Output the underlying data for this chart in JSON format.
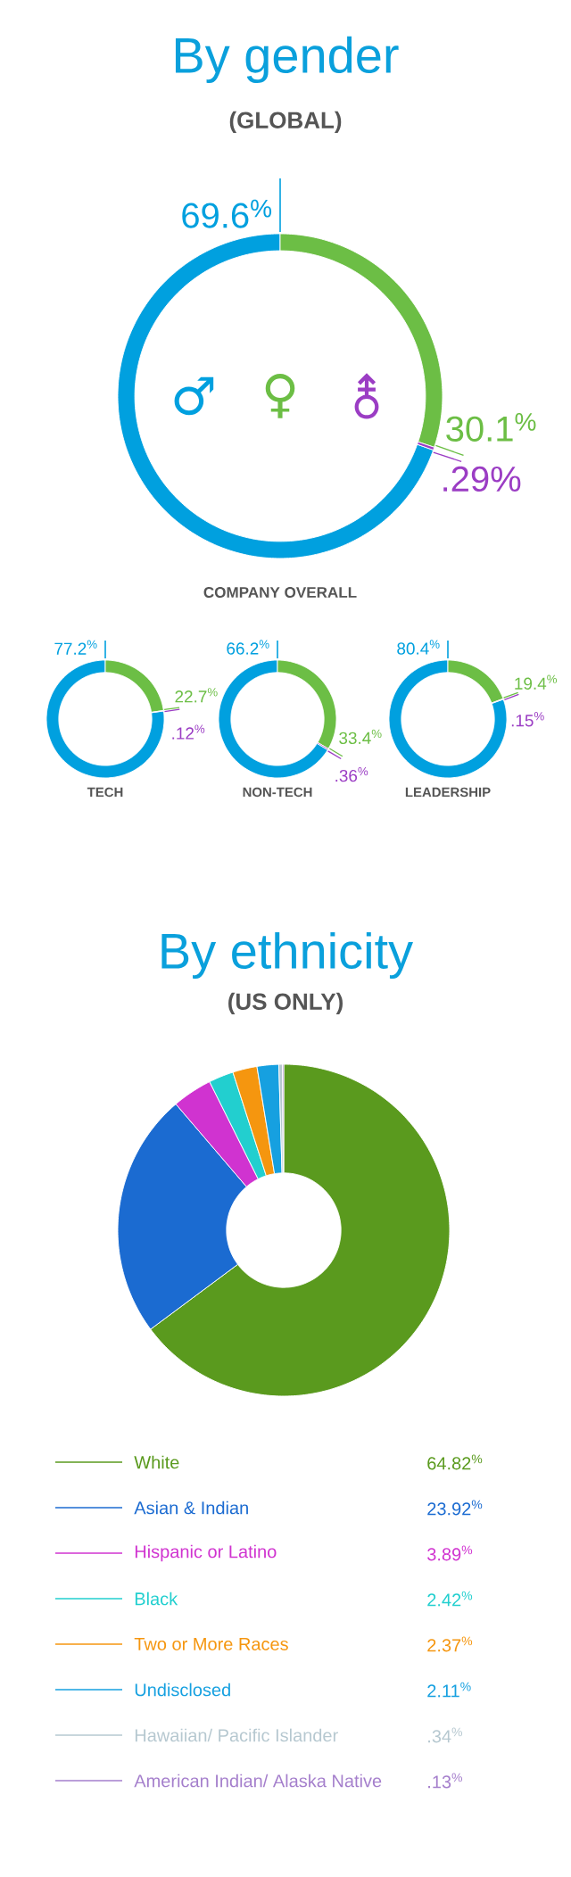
{
  "chart_data": [
    {
      "type": "donut",
      "title": "By gender",
      "subtitle": "(GLOBAL)",
      "xlabel": "COMPANY OVERALL",
      "categories": [
        null,
        null,
        null
      ],
      "values": [
        69.6,
        30.1,
        0.29
      ],
      "colors": [
        "#00a0df",
        "#6cbe45",
        "#9b3dc4"
      ],
      "value_labels": [
        "69.6$^{%}$",
        "30.1$^{%}$",
        ".29%"
      ],
      "annotations": [
        "♂",
        "♀",
        "⚨"
      ]
    },
    {
      "type": "donut",
      "xlabel": "TECH",
      "categories": [
        null,
        null,
        null
      ],
      "values": [
        77.2,
        22.7,
        0.12
      ],
      "colors": [
        "#00a0df",
        "#6cbe45",
        "#9b3dc4"
      ],
      "value_labels": [
        "77.2$^{%}$",
        "22.7$^{%}$",
        ".12$^{%}$"
      ]
    },
    {
      "type": "donut",
      "xlabel": "NON-TECH",
      "categories": [
        null,
        null,
        null
      ],
      "values": [
        66.2,
        33.4,
        0.36
      ],
      "colors": [
        "#00a0df",
        "#6cbe45",
        "#9b3dc4"
      ],
      "value_labels": [
        "66.2$^{%}$",
        "33.4$^{%}$",
        ".36$^{%}$"
      ]
    },
    {
      "type": "donut",
      "xlabel": "LEADERSHIP",
      "categories": [
        null,
        null,
        null
      ],
      "values": [
        80.4,
        19.4,
        0.15
      ],
      "colors": [
        "#00a0df",
        "#6cbe45",
        "#9b3dc4"
      ],
      "value_labels": [
        "80.4$^{%}$",
        "19.4$^{%}$",
        ".15$^{%}$"
      ]
    },
    {
      "type": "donut",
      "title": "By ethnicity",
      "subtitle": "(US ONLY)",
      "categories": [
        "White",
        "Asian & Indian",
        "Hispanic or Latino",
        "Black",
        "Two or More Races",
        "Undisclosed",
        "Hawaiian/ Pacific Islander",
        "American Indian/ Alaska Native"
      ],
      "values": [
        64.82,
        23.92,
        3.89,
        2.42,
        2.37,
        2.11,
        0.34,
        0.13
      ],
      "colors": [
        "#5a9a1e",
        "#1b6bd1",
        "#d033d0",
        "#22cfcf",
        "#f5960f",
        "#16a0e0",
        "#b6c8d0",
        "#a57fcc"
      ],
      "value_labels": [
        "64.82$^{%}$",
        "23.92$^{%}$",
        "3.89$^{%}$",
        "2.42$^{%}$",
        "2.37$^{%}$",
        "2.11$^{%}$",
        ".34$^{%}$",
        ".13$^{%}$"
      ],
      "legend": "bottom"
    }
  ]
}
